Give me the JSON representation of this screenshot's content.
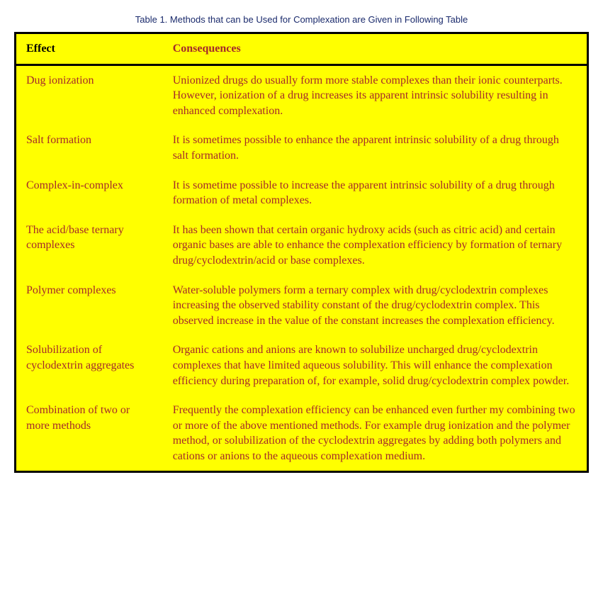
{
  "caption": "Table 1. Methods that can be Used for Complexation are Given in Following Table",
  "columns": [
    "Effect",
    "Consequences"
  ],
  "rows": [
    {
      "effect": "Dug ionization",
      "consequences": "Unionized drugs do usually form more stable complexes than their ionic counterparts.  However, ionization of a drug increases its apparent intrinsic solubility resulting in enhanced complexation."
    },
    {
      "effect": "Salt formation",
      "consequences": "It is sometimes possible to enhance the apparent intrinsic solubility of a drug through salt formation."
    },
    {
      "effect": "Complex-in-complex",
      "consequences": "It is sometime possible to increase the apparent intrinsic solubility of a drug through formation of metal complexes."
    },
    {
      "effect": "The acid/base ternary complexes",
      "consequences": "It has been shown that certain organic hydroxy acids (such as citric acid) and certain organic bases are able to enhance the complexation efficiency by formation of ternary drug/cyclodextrin/acid or base complexes."
    },
    {
      "effect": "Polymer complexes",
      "consequences": "Water-soluble polymers form a ternary complex with drug/cyclodextrin complexes increasing the observed stability constant of the drug/cyclodextrin complex.  This observed increase in the value of the constant increases the complexation efficiency."
    },
    {
      "effect": "Solubilization of cyclodextrin aggregates",
      "consequences": "Organic cations and anions are known to solubilize uncharged drug/cyclodextrin complexes that have limited aqueous solubility.  This will enhance the complexation efficiency during preparation of, for example, solid drug/cyclodextrin complex powder."
    },
    {
      "effect": "Combination of two or more methods",
      "consequences": "Frequently the complexation efficiency can be enhanced even further my combining two or more of the above mentioned methods.  For example drug ionization and the polymer method, or solubilization of the cyclodextrin aggregates by adding both polymers and cations or anions to the aqueous complexation medium."
    }
  ],
  "style": {
    "caption_color": "#1a2a6c",
    "caption_fontsize": 13,
    "caption_font": "Verdana",
    "table_bg": "#ffff00",
    "border_color": "#000000",
    "border_width": 3,
    "header_text_color": "#000000",
    "body_text_color": "#a52a2a",
    "body_font": "Times New Roman",
    "body_fontsize": 16,
    "col_widths": [
      "24%",
      "76%"
    ]
  }
}
